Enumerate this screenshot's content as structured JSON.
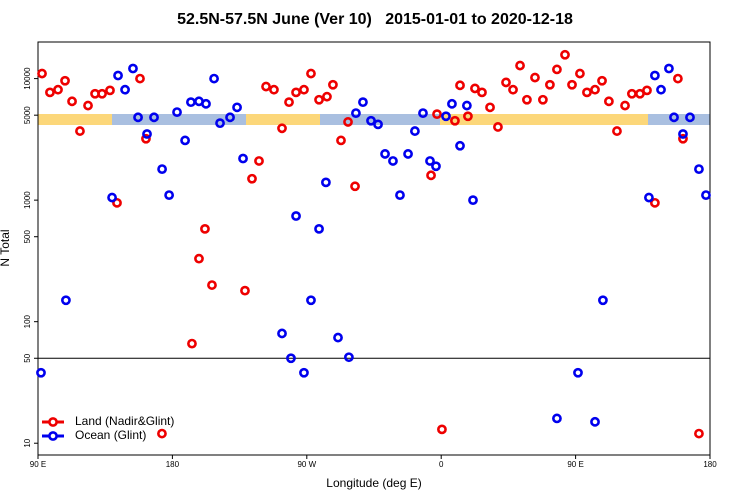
{
  "chart_data": {
    "type": "scatter",
    "title": "52.5N-57.5N June (Ver 10)   2015-01-01 to 2020-12-18",
    "x_label": "Longitude (deg E)",
    "y_label": "N Total",
    "xlim": [
      90,
      540
    ],
    "ylim": [
      8,
      20000
    ],
    "yscale": "log",
    "xticks": [
      {
        "value": 90,
        "label": "90 E"
      },
      180,
      {
        "value": 270,
        "label": "90 W"
      },
      {
        "value": 360,
        "label": "0"
      },
      {
        "value": 450,
        "label": "90 E"
      },
      {
        "value": 540,
        "label": "180"
      }
    ],
    "yticks": [
      10,
      50,
      100,
      500,
      1000,
      5000,
      10000
    ],
    "reference_line": 50,
    "legend": "lower left",
    "series": [
      {
        "name": "Land (Nadir&Glint)",
        "color": "#ee0000",
        "x": [
          92.7,
          98.0,
          103.4,
          108.1,
          112.8,
          118.1,
          123.5,
          128.2,
          132.9,
          138.2,
          142.9,
          158.3,
          162.3,
          173.0,
          193.1,
          197.8,
          201.8,
          206.5,
          228.6,
          233.3,
          238.0,
          242.7,
          248.0,
          253.4,
          258.1,
          262.8,
          268.1,
          272.8,
          278.2,
          283.5,
          287.5,
          292.9,
          297.6,
          302.3,
          353.2,
          357.2,
          360.5,
          369.2,
          372.6,
          377.9,
          382.6,
          387.3,
          392.7,
          398.0,
          403.4,
          408.1,
          412.8,
          417.4,
          422.8,
          428.1,
          432.8,
          437.5,
          442.9,
          447.6,
          452.9,
          457.6,
          463.0,
          467.7,
          472.3,
          477.7,
          483.1,
          487.7,
          493.1,
          497.8,
          503.1,
          518.5,
          521.9,
          532.6
        ],
        "values": [
          11000,
          7700,
          8100,
          9600,
          6500,
          3700,
          6000,
          7500,
          7500,
          8000,
          950,
          10000,
          3200,
          12,
          66,
          330,
          580,
          200,
          180,
          1500,
          2100,
          8600,
          8100,
          3900,
          6400,
          7700,
          8100,
          11000,
          6700,
          7100,
          8900,
          3100,
          4400,
          1300,
          1600,
          5100,
          13,
          4500,
          8800,
          4900,
          8300,
          7700,
          5800,
          4000,
          9300,
          8100,
          12800,
          6700,
          10200,
          6700,
          8900,
          11900,
          15700,
          8900,
          11000,
          7700,
          8100,
          9600,
          6500,
          3700,
          6000,
          7500,
          7500,
          8000,
          950,
          10000,
          3200,
          12
        ]
      },
      {
        "name": "Ocean (Glint)",
        "color": "#0000ee",
        "x": [
          92.0,
          108.7,
          139.6,
          143.6,
          148.3,
          153.6,
          157.0,
          163.0,
          167.7,
          173.1,
          177.8,
          183.1,
          188.5,
          192.4,
          197.8,
          202.5,
          207.9,
          211.9,
          218.6,
          223.3,
          227.3,
          253.4,
          259.4,
          262.8,
          268.1,
          272.8,
          278.2,
          282.8,
          290.9,
          298.2,
          302.9,
          307.6,
          313.0,
          317.7,
          322.4,
          327.7,
          332.4,
          337.8,
          342.4,
          347.8,
          352.5,
          356.5,
          363.2,
          367.2,
          372.6,
          377.2,
          381.3,
          437.5,
          451.6,
          463.0,
          468.3,
          499.1,
          503.1,
          507.2,
          512.5,
          515.9,
          521.9,
          526.6,
          532.6,
          537.3
        ],
        "values": [
          38,
          150,
          1050,
          10600,
          8100,
          12100,
          4800,
          3500,
          4800,
          1800,
          1100,
          5300,
          3100,
          6400,
          6500,
          6200,
          10000,
          4300,
          4800,
          5800,
          2200,
          80,
          50,
          740,
          38,
          150,
          580,
          1400,
          74,
          51,
          5200,
          6400,
          4500,
          4200,
          2400,
          2100,
          1100,
          2400,
          3700,
          5200,
          2100,
          1900,
          4900,
          6200,
          2800,
          6000,
          1000,
          16,
          38,
          15,
          150,
          1050,
          10600,
          8100,
          12100,
          4800,
          3500,
          4800,
          1800,
          1100
        ]
      }
    ]
  }
}
